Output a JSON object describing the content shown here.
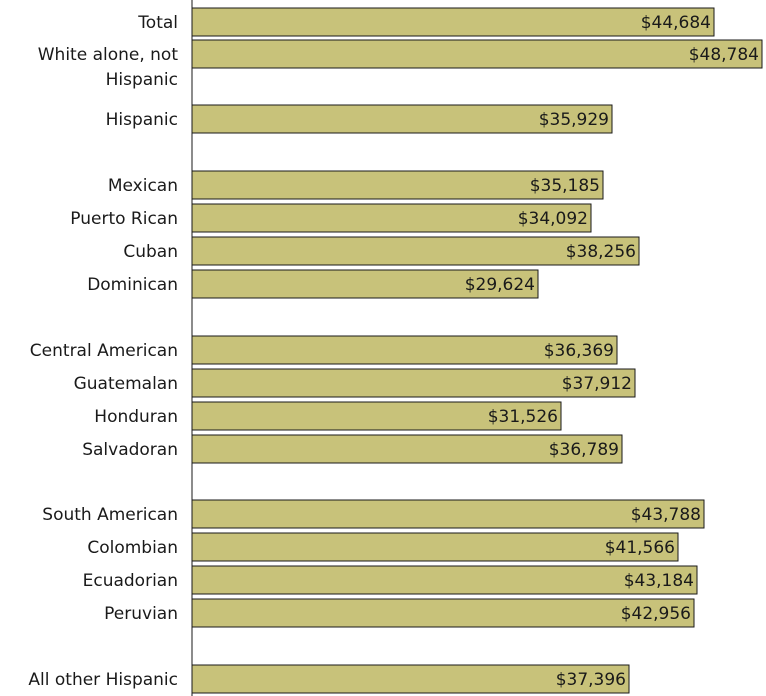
{
  "colors": {
    "bar_fill": "#c8c27a",
    "bar_stroke": "#1a1a1a",
    "text": "#1a1a1a",
    "background": "#ffffff"
  },
  "chart_data": {
    "type": "bar",
    "orientation": "horizontal",
    "title": "",
    "xlabel": "",
    "ylabel": "",
    "xlim": [
      0,
      51000
    ],
    "grid": false,
    "legend": "none",
    "value_format": "currency-usd",
    "categories": [
      [
        "Total"
      ],
      [
        "White alone, not",
        "Hispanic"
      ],
      [
        "Hispanic"
      ],
      [
        "Mexican"
      ],
      [
        "Puerto Rican"
      ],
      [
        "Cuban"
      ],
      [
        "Dominican"
      ],
      [
        "Central American"
      ],
      [
        "Guatemalan"
      ],
      [
        "Honduran"
      ],
      [
        "Salvadoran"
      ],
      [
        "South American"
      ],
      [
        "Colombian"
      ],
      [
        "Ecuadorian"
      ],
      [
        "Peruvian"
      ],
      [
        "All other Hispanic"
      ]
    ],
    "values": [
      44684,
      48784,
      35929,
      35185,
      34092,
      38256,
      29624,
      36369,
      37912,
      31526,
      36789,
      43788,
      41566,
      43184,
      42956,
      37396
    ],
    "value_labels": [
      "$44,684",
      "$48,784",
      "$35,929",
      "$35,185",
      "$34,092",
      "$38,256",
      "$29,624",
      "$36,369",
      "$37,912",
      "$31,526",
      "$36,789",
      "$43,788",
      "$41,566",
      "$43,184",
      "$42,956",
      "$37,396"
    ]
  }
}
